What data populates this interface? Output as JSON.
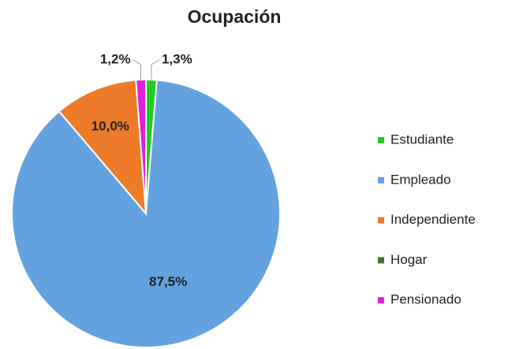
{
  "chart_data": {
    "type": "pie",
    "title": "Ocupación",
    "categories": [
      "Estudiante",
      "Empleado",
      "Independiente",
      "Hogar",
      "Pensionado"
    ],
    "values": [
      1.3,
      87.5,
      10.0,
      0,
      1.2
    ],
    "value_labels": [
      "1,3%",
      "87,5%",
      "10,0%",
      null,
      "1,2%"
    ],
    "colors": [
      "#1ecf1e",
      "#63a2df",
      "#ee7b2a",
      "#3b7a2c",
      "#e020d8"
    ],
    "legend": "right"
  }
}
